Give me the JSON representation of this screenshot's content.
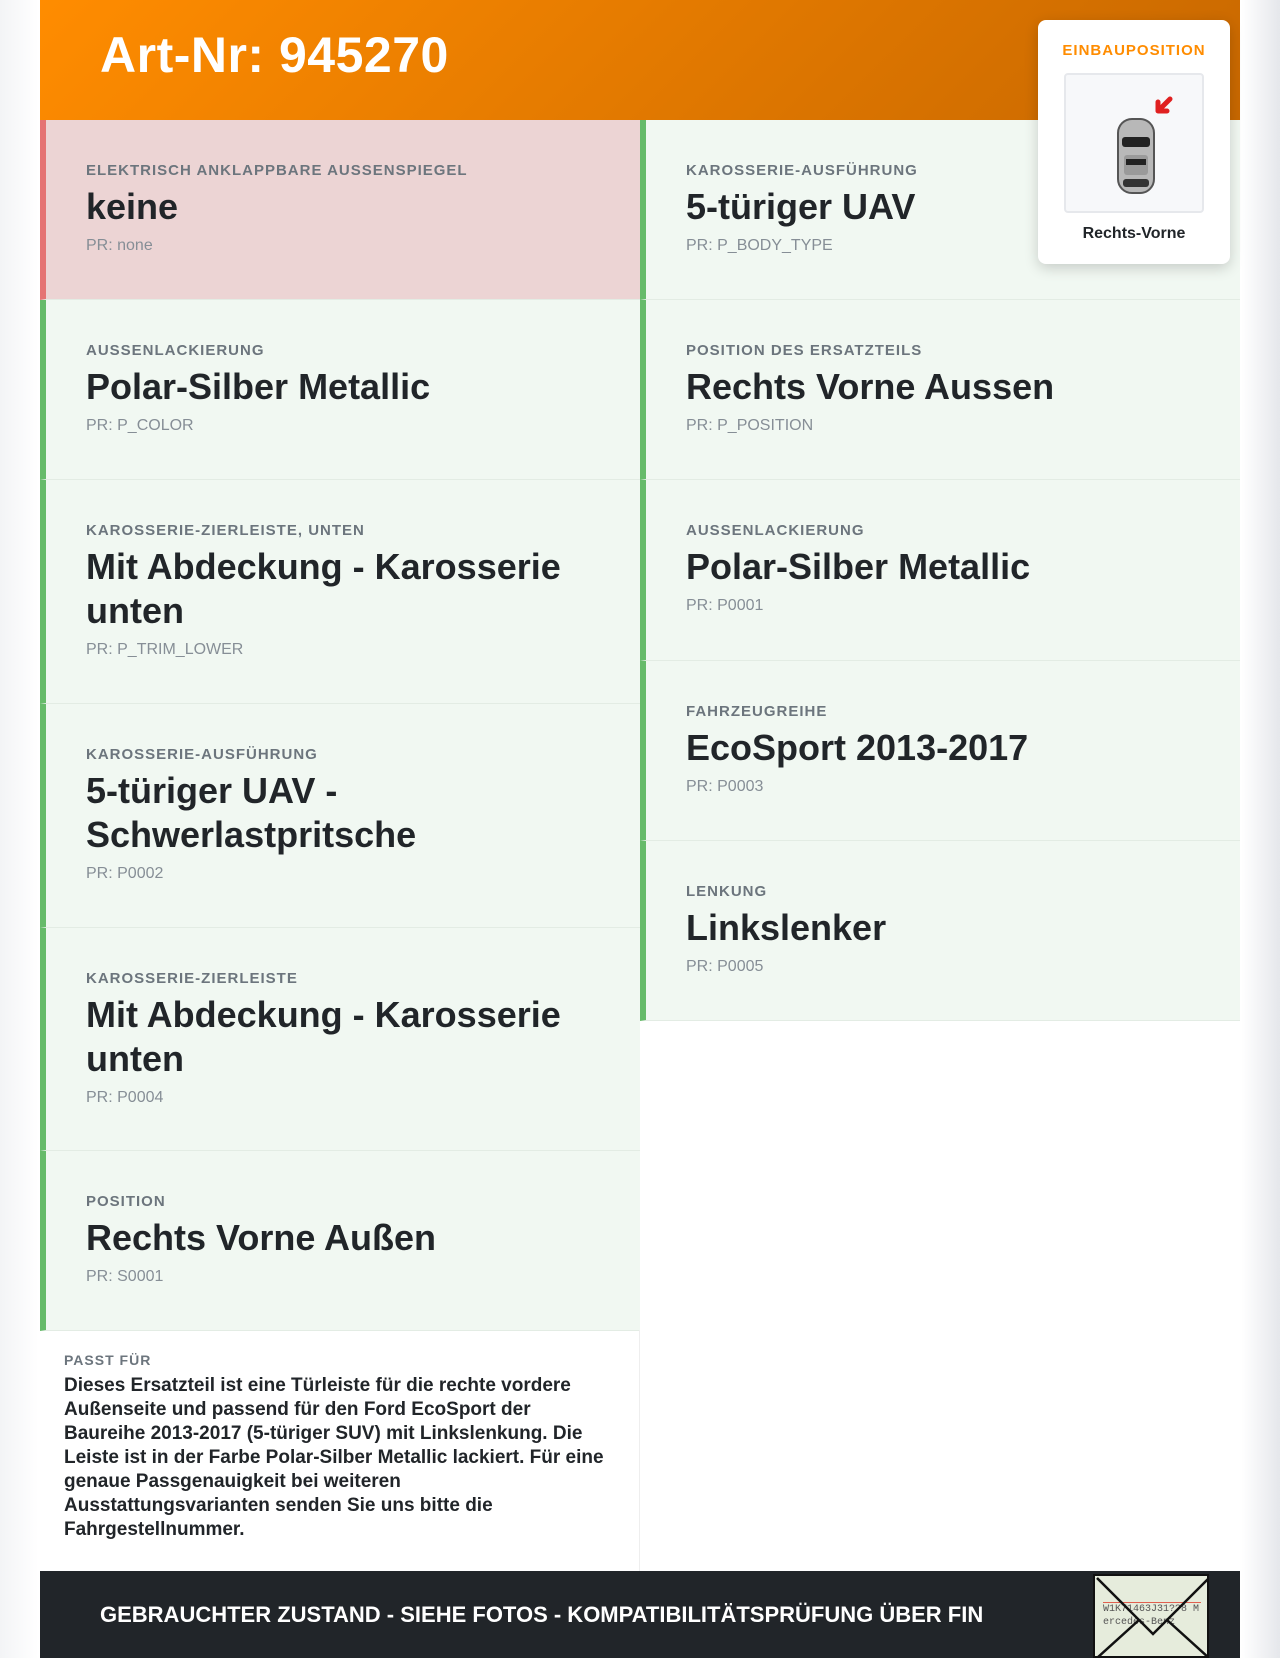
{
  "header": {
    "title": "Art-Nr: 945270"
  },
  "left": [
    {
      "label": "ELEKTRISCH ANKLAPPBARE AUSSENSPIEGEL",
      "value": "keine",
      "pr": "PR: none",
      "status": "missing"
    },
    {
      "label": "AUSSENLACKIERUNG",
      "value": "Polar-Silber Metallic",
      "pr": "PR: P_COLOR",
      "status": "ok"
    },
    {
      "label": "KAROSSERIE-ZIERLEISTE, UNTEN",
      "value": "Mit Abdeckung - Karosserie unten",
      "pr": "PR: P_TRIM_LOWER",
      "status": "ok"
    },
    {
      "label": "KAROSSERIE-AUSFÜHRUNG",
      "value": "5-türiger UAV - Schwerlastpritsche",
      "pr": "PR: P0002",
      "status": "ok"
    },
    {
      "label": "KAROSSERIE-ZIERLEISTE",
      "value": "Mit Abdeckung - Karosserie unten",
      "pr": "PR: P0004",
      "status": "ok"
    },
    {
      "label": "POSITION",
      "value": "Rechts Vorne Außen",
      "pr": "PR: S0001",
      "status": "ok"
    }
  ],
  "right": [
    {
      "label": "KAROSSERIE-AUSFÜHRUNG",
      "value": "5-türiger UAV",
      "pr": "PR: P_BODY_TYPE",
      "status": "ok"
    },
    {
      "label": "POSITION DES ERSATZTEILS",
      "value": "Rechts Vorne Aussen",
      "pr": "PR: P_POSITION",
      "status": "ok"
    },
    {
      "label": "AUSSENLACKIERUNG",
      "value": "Polar-Silber Metallic",
      "pr": "PR: P0001",
      "status": "ok"
    },
    {
      "label": "FAHRZEUGREIHE",
      "value": "EcoSport 2013-2017",
      "pr": "PR: P0003",
      "status": "ok"
    },
    {
      "label": "LENKUNG",
      "value": "Linkslenker",
      "pr": "PR: P0005",
      "status": "ok"
    }
  ],
  "fits": {
    "label": "PASST FÜR",
    "text": "Dieses Ersatzteil ist eine Türleiste für die rechte vordere Außenseite und passend für den Ford EcoSport der Baureihe 2013-2017 (5-türiger SUV) mit Linkslenkung. Die Leiste ist in der Farbe Polar-Silber Metallic lackiert. Für eine genaue Passgenauigkeit bei weiteren Ausstattungsvarianten senden Sie uns bitte die Fahrgestellnummer."
  },
  "position_card": {
    "title": "EINBAUPOSITION",
    "position": "Rechts-Vorne",
    "icon": "car-top-view-with-arrow"
  },
  "footer": {
    "text": "GEBRAUCHTER ZUSTAND - SIEHE FOTOS - KOMPATIBILITÄTSPRÜFUNG ÜBER FIN",
    "vin_image_text": "W1K71463J31??8 Mercedes-Benz",
    "icon": "vin-envelope"
  },
  "colors": {
    "accent": "#ff8c00",
    "ok_border": "#66bb6a",
    "ok_bg": "#f1f8f2",
    "missing_border": "#e57373",
    "missing_bg": "#ecd4d4",
    "footer_bg": "#212529"
  }
}
